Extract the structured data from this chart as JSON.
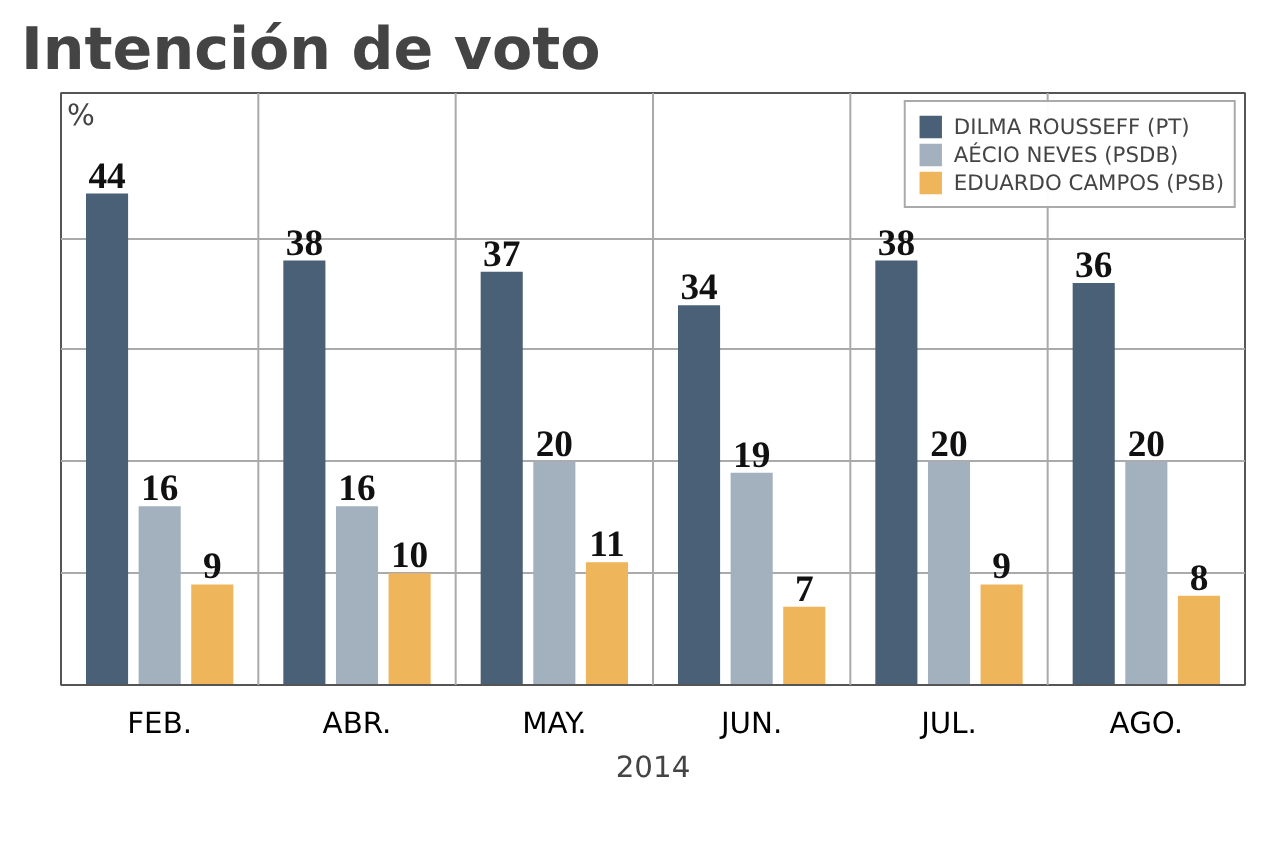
{
  "chart_data": {
    "type": "bar",
    "title": "Intención de voto",
    "ylabel": "%",
    "xlabel": "2014",
    "categories": [
      "FEB.",
      "ABR.",
      "MAY.",
      "JUN.",
      "JUL.",
      "AGO."
    ],
    "series": [
      {
        "name": "DILMA ROUSSEFF (PT)",
        "color": "#4a6076",
        "values": [
          44,
          38,
          37,
          34,
          38,
          36
        ]
      },
      {
        "name": "AÉCIO NEVES (PSDB)",
        "color": "#a3b1bf",
        "values": [
          16,
          16,
          20,
          19,
          20,
          20
        ]
      },
      {
        "name": "EDUARDO CAMPOS (PSB)",
        "color": "#efb55a",
        "values": [
          9,
          10,
          11,
          7,
          9,
          8
        ]
      }
    ],
    "ylim": [
      0,
      53
    ],
    "yticks": [
      {
        "value": 0,
        "label": null
      },
      {
        "value": 10,
        "label": null
      },
      {
        "value": 20,
        "label": null
      },
      {
        "value": 30,
        "label": null
      },
      {
        "value": 40,
        "label": null
      }
    ],
    "tick_labels": "x",
    "grid": "y",
    "legend": "top right",
    "data_labels": true
  }
}
